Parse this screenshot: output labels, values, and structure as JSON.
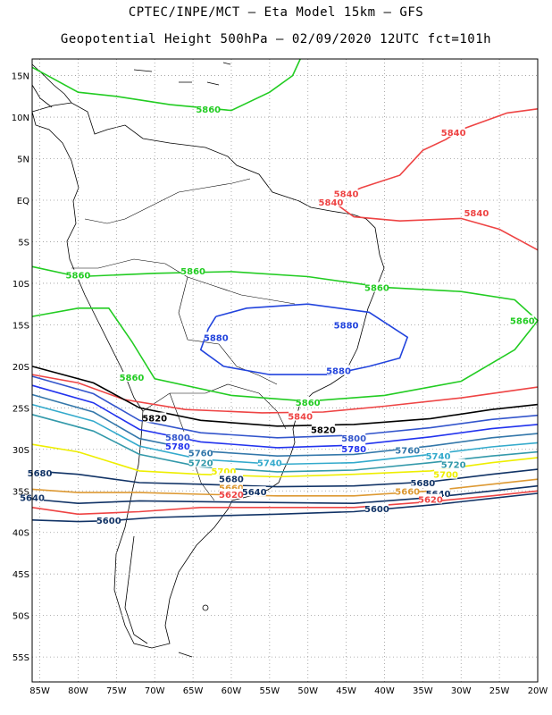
{
  "header": {
    "line1": "CPTEC/INPE/MCT –  Eta Model 15km – GFS",
    "line2": "Geopotential Height 500hPa – 02/09/2020 12UTC fct=101h"
  },
  "axes": {
    "lat_ticks": [
      "15N",
      "10N",
      "5N",
      "EQ",
      "5S",
      "10S",
      "15S",
      "20S",
      "25S",
      "30S",
      "35S",
      "40S",
      "45S",
      "50S",
      "55S"
    ],
    "lat_values": [
      15,
      10,
      5,
      0,
      -5,
      -10,
      -15,
      -20,
      -25,
      -30,
      -35,
      -40,
      -45,
      -50,
      -55
    ],
    "lon_ticks": [
      "85W",
      "80W",
      "75W",
      "70W",
      "65W",
      "60W",
      "55W",
      "50W",
      "45W",
      "40W",
      "35W",
      "30W",
      "25W",
      "20W"
    ],
    "lon_values": [
      -85,
      -80,
      -75,
      -70,
      -65,
      -60,
      -55,
      -50,
      -45,
      -40,
      -35,
      -30,
      -25,
      -20
    ],
    "lon_range": [
      -86,
      -20
    ],
    "lat_range": [
      -58,
      17
    ],
    "grid": "dotted"
  },
  "contours": [
    {
      "value": "5880",
      "color": "#2244dd",
      "labels": [
        [
          -62,
          -16.5
        ],
        [
          -45,
          -15
        ],
        [
          -46,
          -20.5
        ]
      ]
    },
    {
      "value": "5860",
      "color": "#22cc22",
      "labels": [
        [
          -63,
          11
        ],
        [
          -80,
          -9
        ],
        [
          -65,
          -8.5
        ],
        [
          -41,
          -10.5
        ],
        [
          -22,
          -14.5
        ],
        [
          -73,
          -21.3
        ],
        [
          -50,
          -24.3
        ]
      ]
    },
    {
      "value": "5840",
      "color": "#ee4444",
      "labels": [
        [
          -31,
          8.2
        ],
        [
          -45,
          0.8
        ],
        [
          -47,
          -0.2
        ],
        [
          -28,
          -1.5
        ],
        [
          -51,
          -26
        ]
      ]
    },
    {
      "value": "5820",
      "color": "#000000",
      "labels": [
        [
          -70,
          -26.2
        ],
        [
          -48,
          -27.6
        ]
      ]
    },
    {
      "value": "5800",
      "color": "#3355cc",
      "labels": [
        [
          -67,
          -28.5
        ],
        [
          -44,
          -28.6
        ]
      ]
    },
    {
      "value": "5780",
      "color": "#2233ee",
      "labels": [
        [
          -67,
          -29.6
        ],
        [
          -44,
          -29.9
        ]
      ]
    },
    {
      "value": "5760",
      "color": "#3377aa",
      "labels": [
        [
          -64,
          -30.4
        ],
        [
          -37,
          -30.1
        ]
      ]
    },
    {
      "value": "5740",
      "color": "#33aacc",
      "labels": [
        [
          -55,
          -31.6
        ],
        [
          -33,
          -30.8
        ]
      ]
    },
    {
      "value": "5720",
      "color": "#3399aa",
      "labels": [
        [
          -64,
          -31.6
        ],
        [
          -31,
          -31.8
        ]
      ]
    },
    {
      "value": "5700",
      "color": "#eeee00",
      "labels": [
        [
          -61,
          -32.6
        ],
        [
          -32,
          -33
        ]
      ]
    },
    {
      "value": "5680",
      "color": "#113366",
      "labels": [
        [
          -85,
          -32.8
        ],
        [
          -60,
          -33.5
        ],
        [
          -35,
          -34
        ]
      ]
    },
    {
      "value": "5660",
      "color": "#dd9933",
      "labels": [
        [
          -60,
          -34.6
        ],
        [
          -37,
          -35
        ]
      ]
    },
    {
      "value": "5640",
      "color": "#113366",
      "labels": [
        [
          -86,
          -35.8
        ],
        [
          -57,
          -35.1
        ],
        [
          -33,
          -35.3
        ]
      ]
    },
    {
      "value": "5620",
      "color": "#ee4444",
      "labels": [
        [
          -60,
          -35.4
        ],
        [
          -34,
          -36
        ]
      ]
    },
    {
      "value": "5600",
      "color": "#113366",
      "labels": [
        [
          -76,
          -38.5
        ],
        [
          -41,
          -37.1
        ]
      ]
    }
  ]
}
